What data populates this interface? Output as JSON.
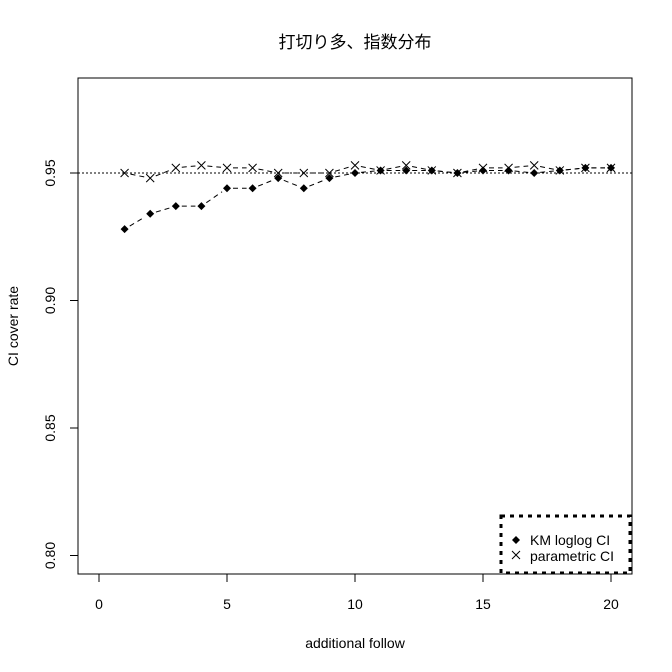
{
  "chart_data": {
    "type": "line",
    "title": "打切り多、指数分布",
    "xlabel": "additional follow",
    "ylabel": "CI cover rate",
    "xlim": [
      -0.8,
      20.8
    ],
    "ylim": [
      0.793,
      0.988
    ],
    "x_ticks": [
      0,
      5,
      10,
      15,
      20
    ],
    "x_tick_labels": [
      "0",
      "5",
      "10",
      "15",
      "20"
    ],
    "y_ticks": [
      0.8,
      0.85,
      0.9,
      0.95
    ],
    "y_tick_labels": [
      "0.80",
      "0.85",
      "0.90",
      "0.95"
    ],
    "grid": false,
    "reference_line": {
      "y": 0.95,
      "style": "dotted"
    },
    "x": [
      1,
      2,
      3,
      4,
      5,
      6,
      7,
      8,
      9,
      10,
      11,
      12,
      13,
      14,
      15,
      16,
      17,
      18,
      19,
      20
    ],
    "series": [
      {
        "name": "KM loglog CI",
        "marker": "diamond-filled",
        "line_style": "dashed",
        "values": [
          0.928,
          0.934,
          0.937,
          0.937,
          0.944,
          0.944,
          0.948,
          0.944,
          0.948,
          0.95,
          0.951,
          0.951,
          0.951,
          0.95,
          0.951,
          0.951,
          0.95,
          0.951,
          0.952,
          0.952
        ]
      },
      {
        "name": "parametric CI",
        "marker": "x",
        "line_style": "dashed",
        "values": [
          0.95,
          0.948,
          0.952,
          0.953,
          0.952,
          0.952,
          0.95,
          0.95,
          0.95,
          0.953,
          0.951,
          0.953,
          0.951,
          0.95,
          0.952,
          0.952,
          0.953,
          0.951,
          0.952,
          0.952
        ]
      }
    ],
    "legend": {
      "position": "bottom-right",
      "border": "dotted",
      "entries": [
        "KM loglog CI",
        "parametric CI"
      ]
    }
  },
  "colors": {
    "foreground": "#000000",
    "background": "#ffffff"
  }
}
